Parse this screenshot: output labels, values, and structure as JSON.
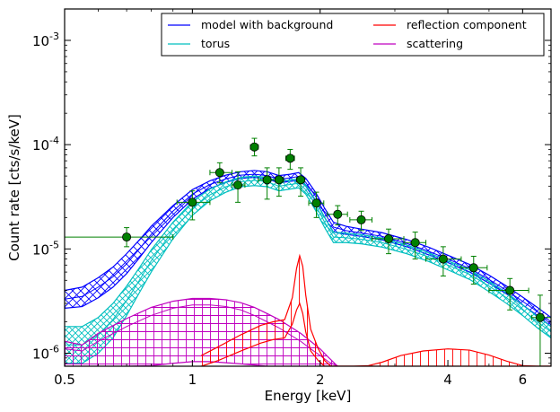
{
  "chart_data": {
    "type": "line",
    "xlabel": "Energy [keV]",
    "ylabel": "Count rate [cts/s/keV]",
    "x_scale": "log",
    "y_scale": "log",
    "xlim": [
      0.5,
      7.0
    ],
    "ylim": [
      7.5e-07,
      0.002
    ],
    "x_ticks": [
      {
        "value": 0.5,
        "label": "0.5"
      },
      {
        "value": 1,
        "label": "1"
      },
      {
        "value": 2,
        "label": "2"
      },
      {
        "value": 4,
        "label": "4"
      },
      {
        "value": 6,
        "label": "6"
      }
    ],
    "y_ticks": [
      {
        "value": 1e-06,
        "base": "10",
        "exp": "-6"
      },
      {
        "value": 1e-05,
        "base": "10",
        "exp": "-5"
      },
      {
        "value": 0.0001,
        "base": "10",
        "exp": "-4"
      },
      {
        "value": 0.001,
        "base": "10",
        "exp": "-3"
      }
    ],
    "grid": false,
    "legend_position": "top-right",
    "legend": [
      {
        "label": "model with background",
        "color": "#0000ff"
      },
      {
        "label": "reflection component",
        "color": "#ff0000"
      },
      {
        "label": "torus",
        "color": "#00bfbf"
      },
      {
        "label": "scattering",
        "color": "#bf00bf"
      }
    ],
    "series": [
      {
        "name": "model with background",
        "color": "#0000ff",
        "hatch": "cross",
        "x": [
          0.5,
          0.55,
          0.6,
          0.65,
          0.7,
          0.75,
          0.8,
          0.9,
          1.0,
          1.1,
          1.2,
          1.3,
          1.4,
          1.5,
          1.6,
          1.7,
          1.78,
          1.85,
          1.95,
          2.05,
          2.15,
          2.3,
          2.5,
          2.8,
          3.2,
          3.6,
          4.0,
          4.5,
          5.0,
          5.5,
          6.0,
          6.5,
          7.0
        ],
        "lower": [
          2.7e-06,
          2.8e-06,
          3.4e-06,
          4.3e-06,
          5.8e-06,
          8.2e-06,
          1.15e-05,
          2e-05,
          3e-05,
          3.8e-05,
          4.35e-05,
          4.75e-05,
          4.85e-05,
          4.7e-05,
          4.3e-05,
          4.45e-05,
          4.55e-05,
          4e-05,
          2.9e-05,
          2e-05,
          1.45e-05,
          1.38e-05,
          1.32e-05,
          1.22e-05,
          1.05e-05,
          8.8e-06,
          7.4e-06,
          6e-06,
          4.7e-06,
          3.7e-06,
          2.9e-06,
          2.3e-06,
          1.8e-06
        ],
        "mid": [
          3.3e-06,
          3.5e-06,
          4.3e-06,
          5.4e-06,
          7.2e-06,
          1e-05,
          1.38e-05,
          2.3e-05,
          3.35e-05,
          4.15e-05,
          4.7e-05,
          5.1e-05,
          5.2e-05,
          5.05e-05,
          4.65e-05,
          4.8e-05,
          4.95e-05,
          4.35e-05,
          3.2e-05,
          2.2e-05,
          1.62e-05,
          1.5e-05,
          1.42e-05,
          1.32e-05,
          1.13e-05,
          9.5e-06,
          8e-06,
          6.5e-06,
          5.1e-06,
          4e-06,
          3.15e-06,
          2.5e-06,
          2e-06
        ],
        "upper": [
          4e-06,
          4.3e-06,
          5.3e-06,
          6.7e-06,
          9e-06,
          1.22e-05,
          1.65e-05,
          2.6e-05,
          3.7e-05,
          4.5e-05,
          5.1e-05,
          5.5e-05,
          5.65e-05,
          5.5e-05,
          5.05e-05,
          5.2e-05,
          5.4e-05,
          4.75e-05,
          3.5e-05,
          2.45e-05,
          1.8e-05,
          1.65e-05,
          1.55e-05,
          1.43e-05,
          1.23e-05,
          1.04e-05,
          8.7e-06,
          7.1e-06,
          5.6e-06,
          4.4e-06,
          3.45e-06,
          2.75e-06,
          2.2e-06
        ]
      },
      {
        "name": "torus",
        "color": "#00bfbf",
        "hatch": "diag-cross",
        "x": [
          0.5,
          0.55,
          0.6,
          0.65,
          0.7,
          0.75,
          0.8,
          0.9,
          1.0,
          1.1,
          1.2,
          1.3,
          1.4,
          1.5,
          1.6,
          1.7,
          1.78,
          1.85,
          1.95,
          2.05,
          2.15,
          2.3,
          2.5,
          2.8,
          3.2,
          3.6,
          4.0,
          4.5,
          5.0,
          5.5,
          6.0,
          6.5,
          7.0
        ],
        "lower": [
          8e-07,
          8e-07,
          1e-06,
          1.4e-06,
          2.3e-06,
          3.8e-06,
          6e-06,
          1.25e-05,
          2.1e-05,
          2.9e-05,
          3.5e-05,
          3.95e-05,
          4.05e-05,
          3.95e-05,
          3.6e-05,
          3.75e-05,
          3.85e-05,
          3.35e-05,
          2.35e-05,
          1.6e-05,
          1.15e-05,
          1.15e-05,
          1.12e-05,
          1.04e-05,
          9e-06,
          7.6e-06,
          6.3e-06,
          5.1e-06,
          3.9e-06,
          3e-06,
          2.3e-06,
          1.75e-06,
          1.4e-06
        ],
        "mid": [
          1.2e-06,
          1.2e-06,
          1.5e-06,
          2.1e-06,
          3.2e-06,
          5e-06,
          7.7e-06,
          1.5e-05,
          2.45e-05,
          3.3e-05,
          3.95e-05,
          4.4e-05,
          4.55e-05,
          4.4e-05,
          4e-05,
          4.15e-05,
          4.25e-05,
          3.7e-05,
          2.65e-05,
          1.8e-05,
          1.3e-05,
          1.28e-05,
          1.24e-05,
          1.15e-05,
          9.9e-06,
          8.4e-06,
          7e-06,
          5.7e-06,
          4.4e-06,
          3.4e-06,
          2.6e-06,
          2e-06,
          1.6e-06
        ],
        "upper": [
          1.8e-06,
          1.8e-06,
          2.2e-06,
          3e-06,
          4.4e-06,
          6.6e-06,
          9.8e-06,
          1.8e-05,
          2.85e-05,
          3.75e-05,
          4.4e-05,
          4.85e-05,
          5e-05,
          4.85e-05,
          4.4e-05,
          4.6e-05,
          4.7e-05,
          4.1e-05,
          2.95e-05,
          2e-05,
          1.45e-05,
          1.42e-05,
          1.37e-05,
          1.27e-05,
          1.09e-05,
          9.2e-06,
          7.7e-06,
          6.3e-06,
          4.9e-06,
          3.8e-06,
          2.9e-06,
          2.25e-06,
          1.8e-06
        ]
      },
      {
        "name": "scattering",
        "color": "#bf00bf",
        "hatch": "grid",
        "x": [
          0.5,
          0.55,
          0.6,
          0.7,
          0.8,
          0.9,
          1.0,
          1.1,
          1.2,
          1.3,
          1.4,
          1.5,
          1.6,
          1.7,
          1.8,
          1.9,
          2.0,
          2.1,
          2.2
        ],
        "lower": [
          7.5e-07,
          7.5e-07,
          7.5e-07,
          7.5e-07,
          7.6e-07,
          8e-07,
          8.3e-07,
          8.3e-07,
          8.1e-07,
          7.9e-07,
          7.7e-07,
          7.5e-07,
          7.5e-07,
          7.5e-07,
          7.5e-07,
          7.5e-07,
          7.5e-07,
          7.5e-07,
          7.5e-07
        ],
        "mid": [
          1.1e-06,
          1.05e-06,
          1.3e-06,
          1.8e-06,
          2.3e-06,
          2.7e-06,
          2.9e-06,
          2.9e-06,
          2.8e-06,
          2.6e-06,
          2.3e-06,
          2e-06,
          1.75e-06,
          1.5e-06,
          1.3e-06,
          1.1e-06,
          9.5e-07,
          8.2e-07,
          7.5e-07
        ],
        "upper": [
          1.3e-06,
          1.2e-06,
          1.55e-06,
          2.15e-06,
          2.75e-06,
          3.15e-06,
          3.35e-06,
          3.35e-06,
          3.25e-06,
          3.05e-06,
          2.75e-06,
          2.4e-06,
          2.1e-06,
          1.8e-06,
          1.55e-06,
          1.3e-06,
          1.1e-06,
          9e-07,
          7.5e-07
        ]
      },
      {
        "name": "reflection component",
        "color": "#ff0000",
        "hatch": "vertical",
        "x": [
          1.05,
          1.15,
          1.3,
          1.45,
          1.55,
          1.65,
          1.72,
          1.76,
          1.79,
          1.82,
          1.85,
          1.9,
          1.98,
          2.05,
          2.12,
          2.2,
          2.4,
          2.6,
          2.8,
          3.1,
          3.5,
          4.0,
          4.5,
          5.0,
          5.5,
          6.0,
          6.5,
          7.0
        ],
        "lower": [
          7.5e-07,
          8.5e-07,
          1.05e-06,
          1.25e-06,
          1.35e-06,
          1.4e-06,
          1.9e-06,
          2.6e-06,
          3e-06,
          2.4e-06,
          1.6e-06,
          1.05e-06,
          8.5e-07,
          7.5e-07,
          7.5e-07,
          7.5e-07,
          7.5e-07,
          7.5e-07,
          7.5e-07,
          7.5e-07,
          7.5e-07,
          7.5e-07,
          7.5e-07,
          7.5e-07,
          7.5e-07,
          7.5e-07,
          7.5e-07,
          7.5e-07
        ],
        "upper": [
          9.5e-07,
          1.15e-06,
          1.5e-06,
          1.85e-06,
          2e-06,
          2.1e-06,
          3.4e-06,
          6.5e-06,
          8.6e-06,
          6.8e-06,
          3.6e-06,
          1.7e-06,
          1.1e-06,
          8.5e-07,
          7.5e-07,
          7.5e-07,
          7.5e-07,
          7.6e-07,
          8.2e-07,
          9.5e-07,
          1.05e-06,
          1.1e-06,
          1.07e-06,
          9.6e-07,
          8.4e-07,
          7.6e-07,
          7.5e-07,
          7.5e-07
        ]
      }
    ],
    "data_points": {
      "color": "#008000",
      "points": [
        {
          "x": 0.7,
          "y": 1.3e-05,
          "xlo": 0.5,
          "xhi": 0.9,
          "ylo": 1.05e-05,
          "yhi": 1.6e-05
        },
        {
          "x": 1.0,
          "y": 2.8e-05,
          "xlo": 0.92,
          "xhi": 1.1,
          "ylo": 1.9e-05,
          "yhi": 3.6e-05
        },
        {
          "x": 1.16,
          "y": 5.4e-05,
          "xlo": 1.1,
          "xhi": 1.24,
          "ylo": 4.3e-05,
          "yhi": 6.7e-05
        },
        {
          "x": 1.28,
          "y": 4.1e-05,
          "xlo": 1.24,
          "xhi": 1.33,
          "ylo": 2.8e-05,
          "yhi": 5.5e-05
        },
        {
          "x": 1.4,
          "y": 9.5e-05,
          "xlo": 1.37,
          "xhi": 1.43,
          "ylo": 7.8e-05,
          "yhi": 0.000115
        },
        {
          "x": 1.5,
          "y": 4.6e-05,
          "xlo": 1.43,
          "xhi": 1.57,
          "ylo": 3e-05,
          "yhi": 6e-05
        },
        {
          "x": 1.6,
          "y": 4.6e-05,
          "xlo": 1.57,
          "xhi": 1.64,
          "ylo": 3.2e-05,
          "yhi": 6e-05
        },
        {
          "x": 1.7,
          "y": 7.4e-05,
          "xlo": 1.66,
          "xhi": 1.74,
          "ylo": 5.8e-05,
          "yhi": 9e-05
        },
        {
          "x": 1.8,
          "y": 4.6e-05,
          "xlo": 1.76,
          "xhi": 1.84,
          "ylo": 3.2e-05,
          "yhi": 6e-05
        },
        {
          "x": 1.96,
          "y": 2.75e-05,
          "xlo": 1.88,
          "xhi": 2.04,
          "ylo": 2e-05,
          "yhi": 3.5e-05
        },
        {
          "x": 2.2,
          "y": 2.15e-05,
          "xlo": 2.08,
          "xhi": 2.32,
          "ylo": 1.7e-05,
          "yhi": 2.6e-05
        },
        {
          "x": 2.5,
          "y": 1.9e-05,
          "xlo": 2.35,
          "xhi": 2.65,
          "ylo": 1.5e-05,
          "yhi": 2.3e-05
        },
        {
          "x": 2.9,
          "y": 1.25e-05,
          "xlo": 2.65,
          "xhi": 3.15,
          "ylo": 9e-06,
          "yhi": 1.55e-05
        },
        {
          "x": 3.35,
          "y": 1.15e-05,
          "xlo": 3.15,
          "xhi": 3.55,
          "ylo": 8e-06,
          "yhi": 1.45e-05
        },
        {
          "x": 3.9,
          "y": 8e-06,
          "xlo": 3.55,
          "xhi": 4.3,
          "ylo": 5.5e-06,
          "yhi": 1.05e-05
        },
        {
          "x": 4.6,
          "y": 6.6e-06,
          "xlo": 4.3,
          "xhi": 4.95,
          "ylo": 4.6e-06,
          "yhi": 8.5e-06
        },
        {
          "x": 5.6,
          "y": 4e-06,
          "xlo": 5.0,
          "xhi": 6.2,
          "ylo": 2.6e-06,
          "yhi": 5.2e-06
        },
        {
          "x": 6.6,
          "y": 2.2e-06,
          "xlo": 6.3,
          "xhi": 7.0,
          "ylo": 7.5e-07,
          "yhi": 3.6e-06
        }
      ]
    }
  }
}
